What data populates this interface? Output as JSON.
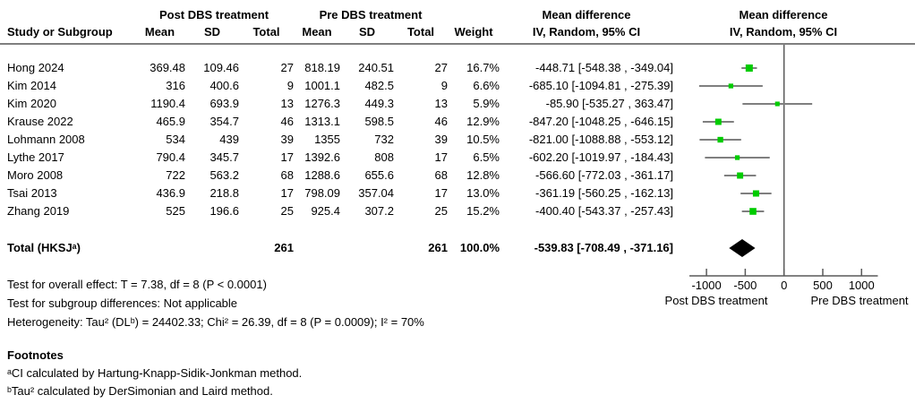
{
  "header": {
    "group_post": "Post DBS treatment",
    "group_pre": "Pre DBS treatment",
    "mean_diff_text": "Mean difference",
    "mean_diff_plot": "Mean difference",
    "col_study": "Study or Subgroup",
    "col_post_mean": "Mean",
    "col_post_sd": "SD",
    "col_post_total": "Total",
    "col_pre_mean": "Mean",
    "col_pre_sd": "SD",
    "col_pre_total": "Total",
    "col_weight": "Weight",
    "col_ci_text": "IV, Random, 95% CI",
    "col_ci_plot": "IV, Random, 95% CI"
  },
  "rows": [
    {
      "name": "Hong 2024",
      "post_mean": "369.48",
      "post_sd": "109.46",
      "post_total": "27",
      "pre_mean": "818.19",
      "pre_sd": "240.51",
      "pre_total": "27",
      "weight": "16.7%",
      "ci": "-448.71 [-548.38 , -349.04]"
    },
    {
      "name": "Kim 2014",
      "post_mean": "316",
      "post_sd": "400.6",
      "post_total": "9",
      "pre_mean": "1001.1",
      "pre_sd": "482.5",
      "pre_total": "9",
      "weight": "6.6%",
      "ci": "-685.10 [-1094.81 , -275.39]"
    },
    {
      "name": "Kim 2020",
      "post_mean": "1190.4",
      "post_sd": "693.9",
      "post_total": "13",
      "pre_mean": "1276.3",
      "pre_sd": "449.3",
      "pre_total": "13",
      "weight": "5.9%",
      "ci": "-85.90 [-535.27 , 363.47]"
    },
    {
      "name": "Krause 2022",
      "post_mean": "465.9",
      "post_sd": "354.7",
      "post_total": "46",
      "pre_mean": "1313.1",
      "pre_sd": "598.5",
      "pre_total": "46",
      "weight": "12.9%",
      "ci": "-847.20 [-1048.25 , -646.15]"
    },
    {
      "name": "Lohmann 2008",
      "post_mean": "534",
      "post_sd": "439",
      "post_total": "39",
      "pre_mean": "1355",
      "pre_sd": "732",
      "pre_total": "39",
      "weight": "10.5%",
      "ci": "-821.00 [-1088.88 , -553.12]"
    },
    {
      "name": "Lythe 2017",
      "post_mean": "790.4",
      "post_sd": "345.7",
      "post_total": "17",
      "pre_mean": "1392.6",
      "pre_sd": "808",
      "pre_total": "17",
      "weight": "6.5%",
      "ci": "-602.20 [-1019.97 , -184.43]"
    },
    {
      "name": "Moro 2008",
      "post_mean": "722",
      "post_sd": "563.2",
      "post_total": "68",
      "pre_mean": "1288.6",
      "pre_sd": "655.6",
      "pre_total": "68",
      "weight": "12.8%",
      "ci": "-566.60 [-772.03 , -361.17]"
    },
    {
      "name": "Tsai 2013",
      "post_mean": "436.9",
      "post_sd": "218.8",
      "post_total": "17",
      "pre_mean": "798.09",
      "pre_sd": "357.04",
      "pre_total": "17",
      "weight": "13.0%",
      "ci": "-361.19 [-560.25 , -162.13]"
    },
    {
      "name": "Zhang 2019",
      "post_mean": "525",
      "post_sd": "196.6",
      "post_total": "25",
      "pre_mean": "925.4",
      "pre_sd": "307.2",
      "pre_total": "25",
      "weight": "15.2%",
      "ci": "-400.40 [-543.37 , -257.43]"
    }
  ],
  "total": {
    "label": "Total (HKSJᵃ)",
    "post_total": "261",
    "pre_total": "261",
    "weight": "100.0%",
    "ci": "-539.83 [-708.49 , -371.16]"
  },
  "stats": [
    "Test for overall effect: T = 7.38, df = 8 (P < 0.0001)",
    "Test for subgroup differences: Not applicable",
    "Heterogeneity: Tau² (DLᵇ) = 24402.33; Chi² = 26.39, df = 8 (P = 0.0009); I² = 70%"
  ],
  "footnotes": {
    "title": "Footnotes",
    "lines": [
      "ᵃCI calculated by Hartung-Knapp-Sidik-Jonkman method.",
      "ᵇTau² calculated by DerSimonian and Laird method."
    ]
  },
  "chart_data": {
    "type": "scatter",
    "subtype": "forest-plot",
    "title": "Mean difference IV, Random, 95% CI",
    "xlabel_left": "Post DBS treatment",
    "xlabel_right": "Pre DBS treatment",
    "x_ticks": [
      -1000,
      -500,
      0,
      500,
      1000
    ],
    "x_range": [
      -1220,
      1210
    ],
    "studies": [
      {
        "name": "Hong 2024",
        "estimate": -448.71,
        "ci_low": -548.38,
        "ci_high": -349.04,
        "weight_pct": 16.7
      },
      {
        "name": "Kim 2014",
        "estimate": -685.1,
        "ci_low": -1094.81,
        "ci_high": -275.39,
        "weight_pct": 6.6
      },
      {
        "name": "Kim 2020",
        "estimate": -85.9,
        "ci_low": -535.27,
        "ci_high": 363.47,
        "weight_pct": 5.9
      },
      {
        "name": "Krause 2022",
        "estimate": -847.2,
        "ci_low": -1048.25,
        "ci_high": -646.15,
        "weight_pct": 12.9
      },
      {
        "name": "Lohmann 2008",
        "estimate": -821.0,
        "ci_low": -1088.88,
        "ci_high": -553.12,
        "weight_pct": 10.5
      },
      {
        "name": "Lythe 2017",
        "estimate": -602.2,
        "ci_low": -1019.97,
        "ci_high": -184.43,
        "weight_pct": 6.5
      },
      {
        "name": "Moro 2008",
        "estimate": -566.6,
        "ci_low": -772.03,
        "ci_high": -361.17,
        "weight_pct": 12.8
      },
      {
        "name": "Tsai 2013",
        "estimate": -361.19,
        "ci_low": -560.25,
        "ci_high": -162.13,
        "weight_pct": 13.0
      },
      {
        "name": "Zhang 2019",
        "estimate": -400.4,
        "ci_low": -543.37,
        "ci_high": -257.43,
        "weight_pct": 15.2
      }
    ],
    "total": {
      "name": "Total (HKSJᵃ)",
      "estimate": -539.83,
      "ci_low": -708.49,
      "ci_high": -371.16,
      "weight_pct": 100.0
    }
  },
  "colors": {
    "marker_green": "#00cc00",
    "ci_line_gray": "#7f7f7f",
    "diamond_black": "#000000",
    "axis_gray": "#595959",
    "rule_gray": "#7f7f7f"
  }
}
